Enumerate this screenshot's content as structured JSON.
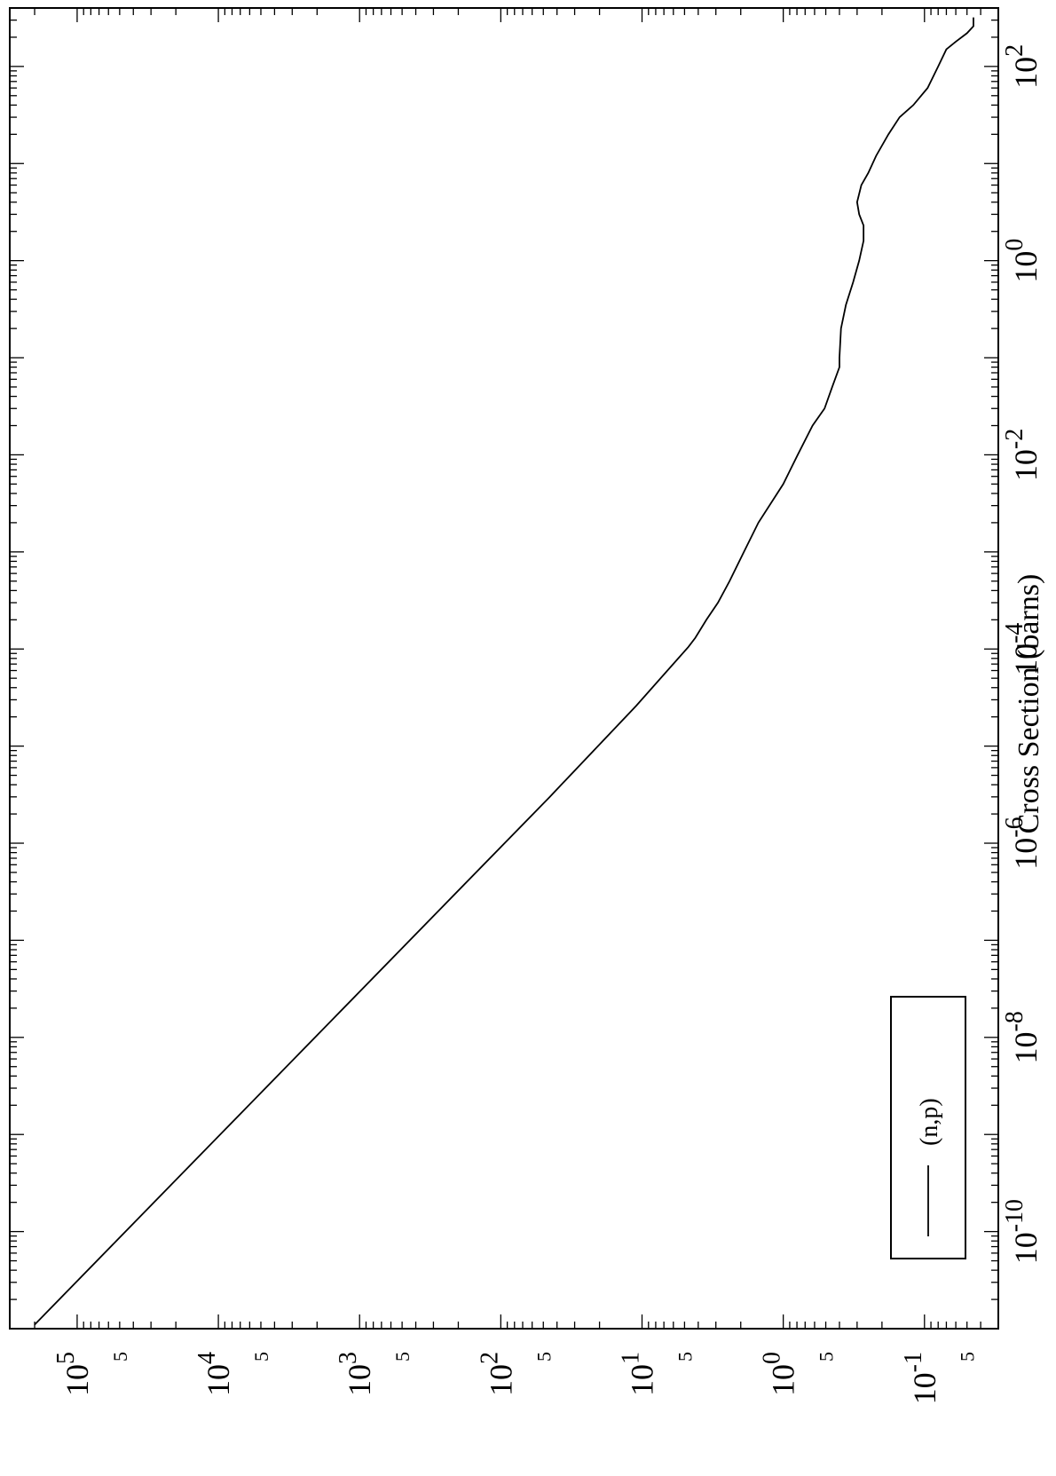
{
  "chart_data": {
    "type": "line",
    "title": "",
    "xlabel": "",
    "ylabel": "Cross Section (barns)",
    "x_scale": "log",
    "y_scale": "log",
    "xlim": [
      1e-11,
      400
    ],
    "ylim": [
      0.03,
      300000
    ],
    "x_tick_labels": [
      {
        "value": 1e-10,
        "base": "10",
        "exp": "-10"
      },
      {
        "value": 1e-08,
        "base": "10",
        "exp": "-8"
      },
      {
        "value": 1e-06,
        "base": "10",
        "exp": "-6"
      },
      {
        "value": 0.0001,
        "base": "10",
        "exp": "-4"
      },
      {
        "value": 0.01,
        "base": "10",
        "exp": "-2"
      },
      {
        "value": 1,
        "base": "10",
        "exp": "0"
      },
      {
        "value": 100,
        "base": "10",
        "exp": "2"
      }
    ],
    "y_tick_labels": [
      {
        "value": 0.1,
        "base": "10",
        "exp": "-1"
      },
      {
        "value": 1,
        "base": "10",
        "exp": "0"
      },
      {
        "value": 10,
        "base": "10",
        "exp": "1"
      },
      {
        "value": 100,
        "base": "10",
        "exp": "2"
      },
      {
        "value": 1000,
        "base": "10",
        "exp": "3"
      },
      {
        "value": 10000,
        "base": "10",
        "exp": "4"
      },
      {
        "value": 100000,
        "base": "10",
        "exp": "5"
      }
    ],
    "y_minor_labels": [
      {
        "value": 0.05,
        "label": "5"
      },
      {
        "value": 0.5,
        "label": "5"
      },
      {
        "value": 5,
        "label": "5"
      },
      {
        "value": 50,
        "label": "5"
      },
      {
        "value": 500,
        "label": "5"
      },
      {
        "value": 5000,
        "label": "5"
      },
      {
        "value": 50000,
        "label": "5"
      }
    ],
    "legend": {
      "position": "bottom-left",
      "entries": [
        "(n,p)"
      ]
    },
    "series": [
      {
        "name": "(n,p)",
        "x": [
          1.1e-11,
          3e-06,
          2.6e-05,
          0.000105,
          0.00013,
          0.0002,
          0.0003,
          0.0005,
          0.001,
          0.002,
          0.005,
          0.01,
          0.02,
          0.03,
          0.05,
          0.08,
          0.1,
          0.2,
          0.35,
          0.6,
          1,
          1.6,
          2.3,
          3,
          4,
          6,
          8,
          12,
          20,
          30,
          40,
          60,
          100,
          150,
          180,
          220,
          260,
          320
        ],
        "y": [
          200000,
          45,
          11,
          4.7,
          4.2,
          3.5,
          2.9,
          2.4,
          1.9,
          1.5,
          1.0,
          0.79,
          0.62,
          0.51,
          0.45,
          0.4,
          0.4,
          0.39,
          0.36,
          0.32,
          0.29,
          0.27,
          0.27,
          0.29,
          0.3,
          0.28,
          0.25,
          0.22,
          0.18,
          0.15,
          0.12,
          0.095,
          0.08,
          0.07,
          0.06,
          0.05,
          0.045,
          0.045
        ]
      }
    ]
  }
}
